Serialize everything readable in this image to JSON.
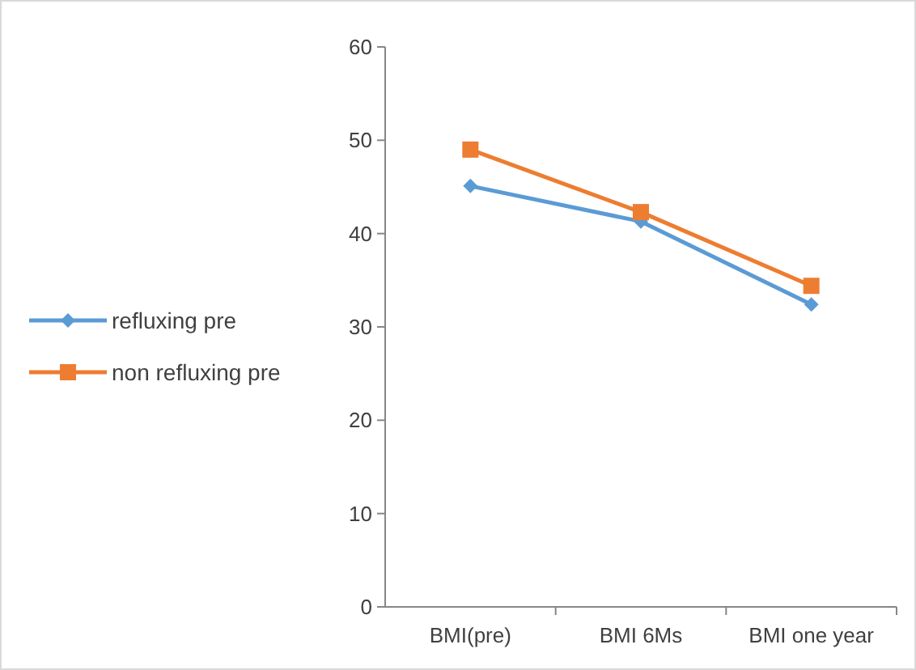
{
  "chart_data": {
    "type": "line",
    "categories": [
      "BMI(pre)",
      "BMI 6Ms",
      "BMI one year"
    ],
    "series": [
      {
        "name": "refluxing pre",
        "color": "#5b9bd5",
        "marker": "diamond",
        "values": [
          45.1,
          41.3,
          32.4
        ]
      },
      {
        "name": "non refluxing pre",
        "color": "#ed7d31",
        "marker": "square",
        "values": [
          49.0,
          42.3,
          34.4
        ]
      }
    ],
    "ylim": [
      0,
      60
    ],
    "yticks": [
      0,
      10,
      20,
      30,
      40,
      50,
      60
    ],
    "grid": false,
    "legend": "left"
  }
}
